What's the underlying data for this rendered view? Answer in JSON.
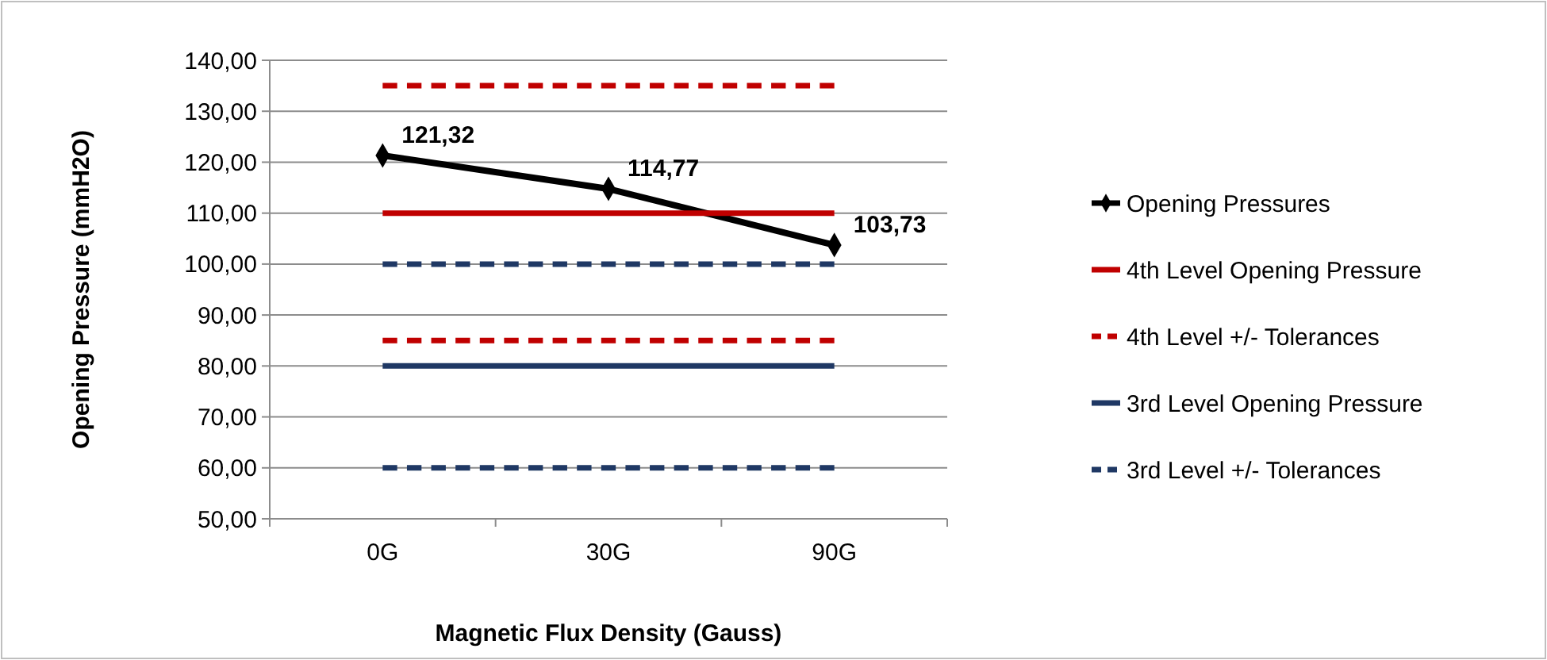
{
  "chart_data": {
    "type": "line",
    "xlabel": "Magnetic Flux Density (Gauss)",
    "ylabel": "Opening Pressure (mmH2O)",
    "categories": [
      "0G",
      "30G",
      "90G"
    ],
    "series": [
      {
        "name": "Opening Pressures",
        "color": "#000000",
        "values": [
          121.32,
          114.77,
          103.73
        ],
        "marker": "diamond",
        "line_style": "solid",
        "value_labels": [
          "121,32",
          "114,77",
          "103,73"
        ]
      },
      {
        "name": "4th Level Opening Pressure",
        "color": "#c00000",
        "values": [
          110,
          110,
          110
        ],
        "marker": "none",
        "line_style": "solid"
      },
      {
        "name": "4th Level +/- Tolerances",
        "color": "#c00000",
        "values": [
          135,
          135,
          135
        ],
        "marker": "none",
        "line_style": "dashed"
      },
      {
        "color": "#c00000",
        "values": [
          85,
          85,
          85
        ],
        "marker": "none",
        "line_style": "dashed"
      },
      {
        "name": "3rd Level Opening Pressure",
        "color": "#1f3864",
        "values": [
          80,
          80,
          80
        ],
        "marker": "none",
        "line_style": "solid"
      },
      {
        "name": "3rd Level +/- Tolerances",
        "color": "#1f3864",
        "values": [
          100,
          100,
          100
        ],
        "marker": "none",
        "line_style": "dashed"
      },
      {
        "color": "#1f3864",
        "values": [
          60,
          60,
          60
        ],
        "marker": "none",
        "line_style": "dashed"
      }
    ],
    "ylim": [
      50,
      140
    ],
    "yticks": [
      {
        "value": 50,
        "label": "50,00"
      },
      {
        "value": 60,
        "label": "60,00"
      },
      {
        "value": 70,
        "label": "70,00"
      },
      {
        "value": 80,
        "label": "80,00"
      },
      {
        "value": 90,
        "label": "90,00"
      },
      {
        "value": 100,
        "label": "100,00"
      },
      {
        "value": 110,
        "label": "110,00"
      },
      {
        "value": 120,
        "label": "120,00"
      },
      {
        "value": 130,
        "label": "130,00"
      },
      {
        "value": 140,
        "label": "140,00"
      }
    ],
    "grid": "y",
    "legend": "right"
  }
}
